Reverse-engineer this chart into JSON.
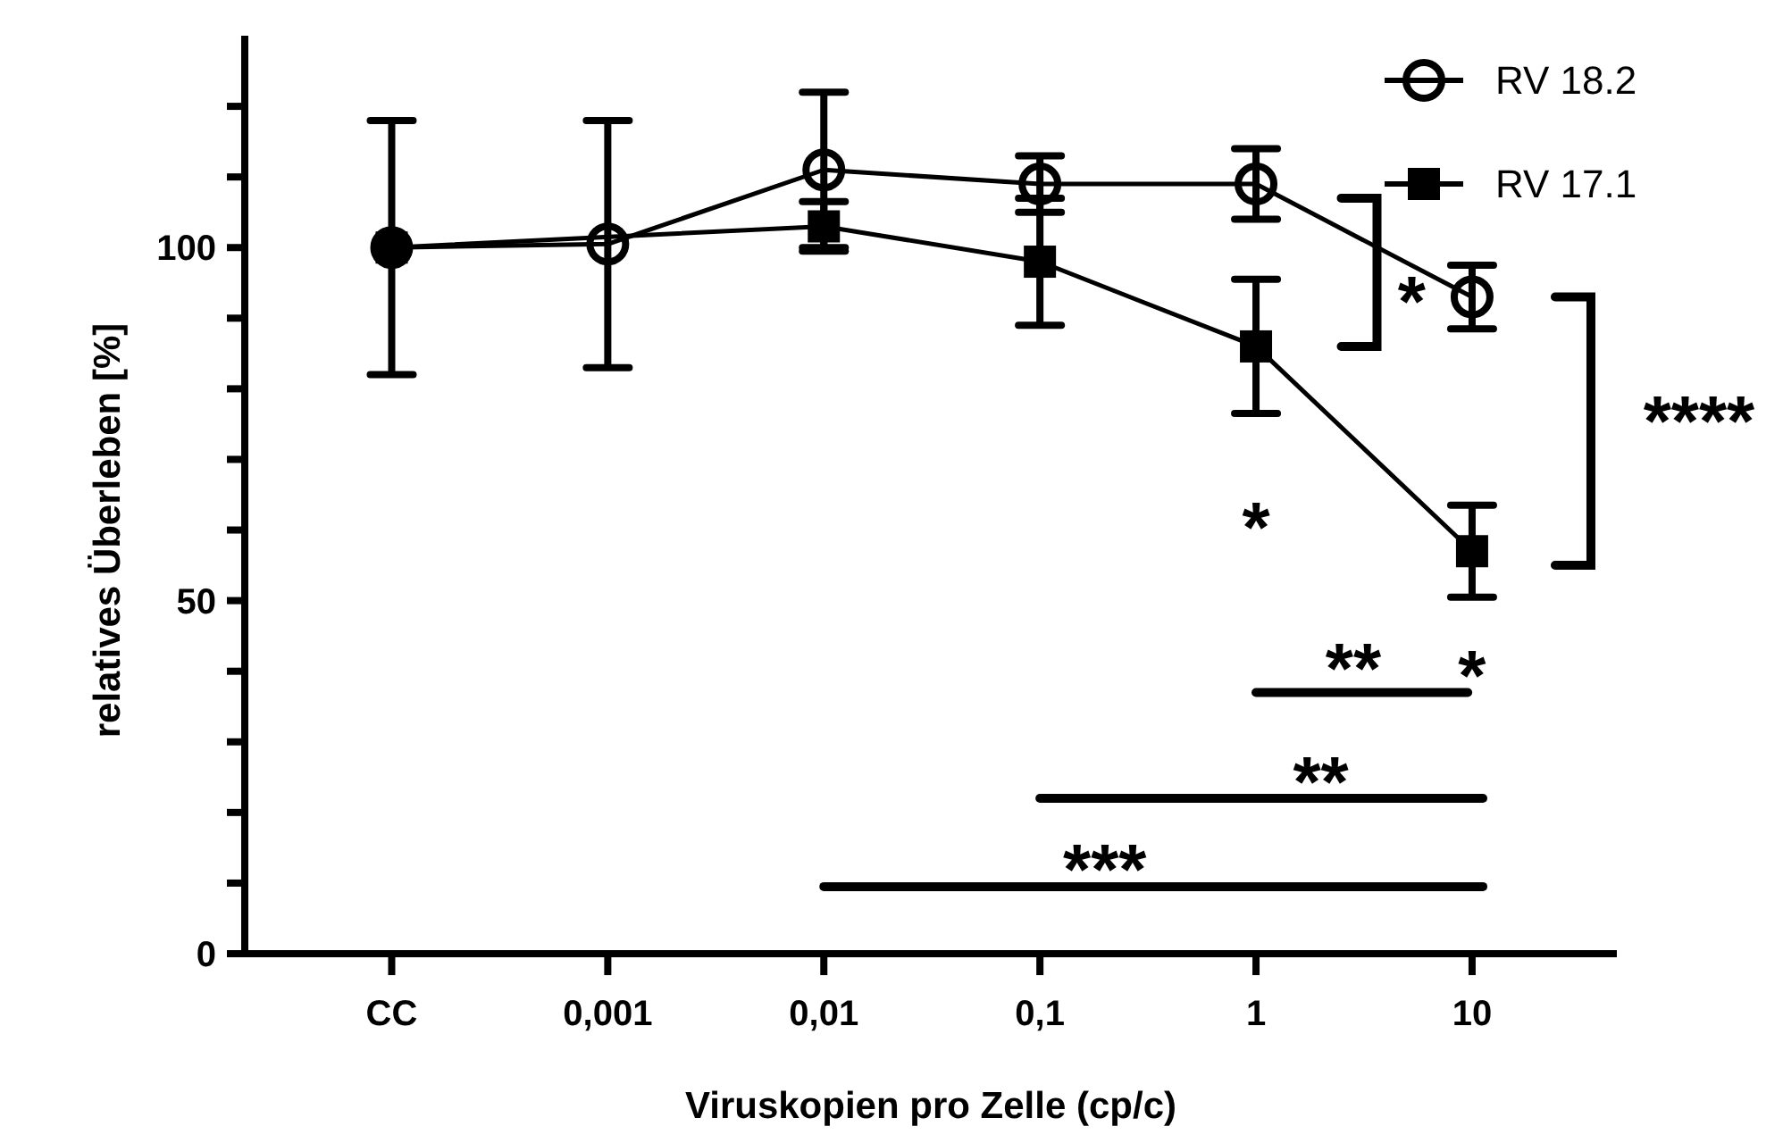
{
  "chart_data": {
    "type": "line",
    "xlabel": "Viruskopien pro Zelle (cp/c)",
    "ylabel": "relatives Überleben [%]",
    "categories": [
      "CC",
      "0,001",
      "0,01",
      "0,1",
      "1",
      "10"
    ],
    "ylim": [
      0,
      130
    ],
    "yticks": [
      0,
      {
        "value": 10,
        "label": null
      },
      {
        "value": 20,
        "label": null
      },
      {
        "value": 30,
        "label": null
      },
      {
        "value": 40,
        "label": null
      },
      50,
      {
        "value": 60,
        "label": null
      },
      {
        "value": 70,
        "label": null
      },
      {
        "value": 80,
        "label": null
      },
      {
        "value": 90,
        "label": null
      },
      100,
      {
        "value": 110,
        "label": null
      },
      {
        "value": 120,
        "label": null
      }
    ],
    "legend": "top right",
    "grid": false,
    "series": [
      {
        "name": "RV 18.2",
        "color": "#000000",
        "marker": "circle",
        "values": [
          100,
          100.5,
          111,
          109,
          109,
          93
        ],
        "errors": [
          18,
          17.5,
          11,
          4,
          5,
          4.5
        ]
      },
      {
        "name": "RV 17.1",
        "color": "#000000",
        "marker": "square",
        "values": [
          100,
          null,
          103,
          98,
          86,
          57
        ],
        "errors": [
          null,
          null,
          3.5,
          9,
          9.5,
          6.5
        ]
      }
    ],
    "annotations": [
      "*",
      "*",
      "****",
      "*",
      "**",
      "**",
      "***"
    ]
  }
}
